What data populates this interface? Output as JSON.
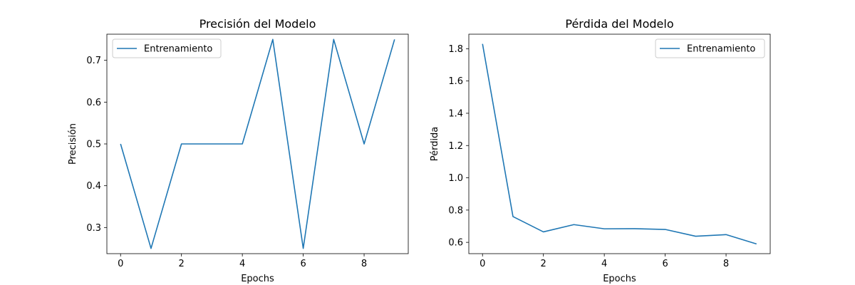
{
  "chart_data": [
    {
      "type": "line",
      "title": "Precisión del Modelo",
      "xlabel": "Epochs",
      "ylabel": "Precisión",
      "xlim": [
        -0.45,
        9.45
      ],
      "ylim": [
        0.2375,
        0.7625
      ],
      "xticks": [
        0,
        2,
        4,
        6,
        8
      ],
      "yticks": [
        0.3,
        0.4,
        0.5,
        0.6,
        0.7
      ],
      "grid": false,
      "legend": "upper left",
      "series": [
        {
          "name": "Entrenamiento",
          "color": "#1f77b4",
          "x": [
            0,
            1,
            2,
            3,
            4,
            5,
            6,
            7,
            8,
            9
          ],
          "y": [
            0.5,
            0.25,
            0.5,
            0.5,
            0.5,
            0.75,
            0.25,
            0.75,
            0.5,
            0.75
          ]
        }
      ]
    },
    {
      "type": "line",
      "title": "Pérdida del Modelo",
      "xlabel": "Epochs",
      "ylabel": "Pérdida",
      "xlim": [
        -0.45,
        9.45
      ],
      "ylim": [
        0.53,
        1.89
      ],
      "xticks": [
        0,
        2,
        4,
        6,
        8
      ],
      "yticks": [
        0.6,
        0.8,
        1.0,
        1.2,
        1.4,
        1.6,
        1.8
      ],
      "grid": false,
      "legend": "upper right",
      "series": [
        {
          "name": "Entrenamiento",
          "color": "#1f77b4",
          "x": [
            0,
            1,
            2,
            3,
            4,
            5,
            6,
            7,
            8,
            9
          ],
          "y": [
            1.83,
            0.76,
            0.665,
            0.71,
            0.684,
            0.685,
            0.68,
            0.638,
            0.648,
            0.59
          ]
        }
      ]
    }
  ]
}
